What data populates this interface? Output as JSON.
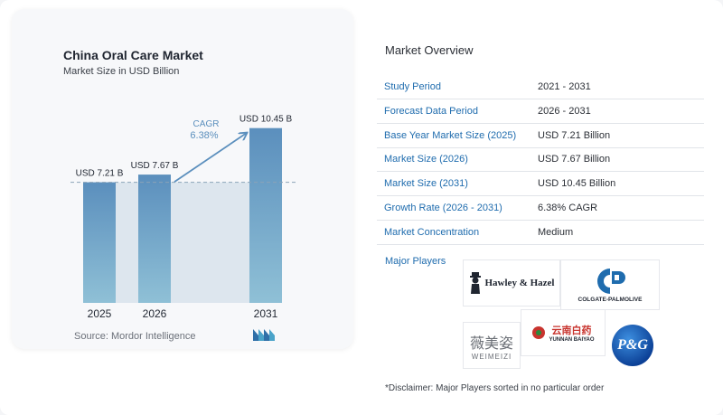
{
  "chart_card": {
    "title": "China Oral Care Market",
    "subtitle": "Market Size in USD Billion",
    "source": "Source:  Mordor Intelligence"
  },
  "chart_data": {
    "type": "bar",
    "categories": [
      "2025",
      "2026",
      "2031"
    ],
    "values": [
      7.21,
      7.67,
      10.45
    ],
    "value_labels": [
      "USD 7.21 B",
      "USD 7.67 B",
      "USD 10.45 B"
    ],
    "title": "China Oral Care Market",
    "subtitle": "Market Size in USD Billion",
    "ylim": [
      0,
      11
    ],
    "grid": false,
    "annotation": {
      "label": "CAGR",
      "value": "6.38%"
    },
    "colors": {
      "bar_top": "#5b8fbd",
      "bar_bottom": "#8fc0d6",
      "shade": "#dde6ee",
      "arrow": "#5b8fbd",
      "cagr_text": "#5b8fbd"
    }
  },
  "overview": {
    "title": "Market Overview",
    "rows": [
      {
        "label": "Study Period",
        "value": "2021 - 2031"
      },
      {
        "label": "Forecast Data Period",
        "value": "2026 - 2031"
      },
      {
        "label": "Base Year Market Size (2025)",
        "value": "USD 7.21 Billion"
      },
      {
        "label": "Market Size (2026)",
        "value": "USD 7.67 Billion"
      },
      {
        "label": "Market Size (2031)",
        "value": "USD 10.45 Billion"
      },
      {
        "label": "Growth Rate (2026 - 2031)",
        "value": "6.38% CAGR"
      },
      {
        "label": "Market Concentration",
        "value": "Medium"
      }
    ],
    "players_title": "Major Players",
    "players": [
      {
        "name": "Hawley & Hazel"
      },
      {
        "name": "COLGATE-PALMOLIVE"
      },
      {
        "name": "薇美姿",
        "sub": "WEIMEIZI"
      },
      {
        "name": "云南白药",
        "sub": "YUNNAN BAIYAO"
      },
      {
        "name": "P&G"
      }
    ],
    "disclaimer": "*Disclaimer: Major Players sorted in no particular order"
  },
  "colors": {
    "label_blue": "#1f6cae"
  }
}
